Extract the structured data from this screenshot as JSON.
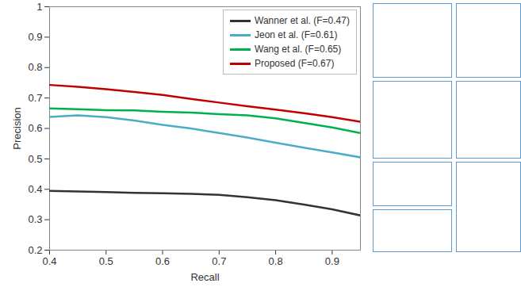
{
  "chart_data": {
    "type": "line",
    "x_label": "Recall",
    "y_label": "Precision",
    "x": [
      0.4,
      0.45,
      0.5,
      0.55,
      0.6,
      0.65,
      0.7,
      0.75,
      0.8,
      0.85,
      0.9,
      0.95
    ],
    "series": [
      {
        "name": "Wanner et al. (F=0.47)",
        "color": "#333333",
        "values": [
          0.395,
          0.393,
          0.391,
          0.388,
          0.387,
          0.385,
          0.382,
          0.374,
          0.364,
          0.35,
          0.334,
          0.314
        ]
      },
      {
        "name": "Jeon et al. (F=0.61)",
        "color": "#4bacc6",
        "values": [
          0.638,
          0.643,
          0.637,
          0.626,
          0.612,
          0.6,
          0.585,
          0.57,
          0.553,
          0.537,
          0.521,
          0.505
        ]
      },
      {
        "name": "Wang et al. (F=0.65)",
        "color": "#00b050",
        "values": [
          0.666,
          0.663,
          0.66,
          0.659,
          0.655,
          0.652,
          0.647,
          0.643,
          0.633,
          0.618,
          0.603,
          0.585
        ]
      },
      {
        "name": "Proposed (F=0.67)",
        "color": "#c00000",
        "values": [
          0.743,
          0.737,
          0.729,
          0.72,
          0.71,
          0.697,
          0.685,
          0.673,
          0.662,
          0.65,
          0.637,
          0.622
        ]
      }
    ],
    "xlim": [
      0.4,
      0.95
    ],
    "xticks": [
      0.4,
      0.5,
      0.6,
      0.7,
      0.8,
      0.9
    ],
    "ylim": [
      0.2,
      1
    ],
    "yticks": [
      0.2,
      0.3,
      0.4,
      0.5,
      0.6,
      0.7,
      0.8,
      0.9,
      1
    ],
    "grid": false,
    "legend": "top-right"
  }
}
